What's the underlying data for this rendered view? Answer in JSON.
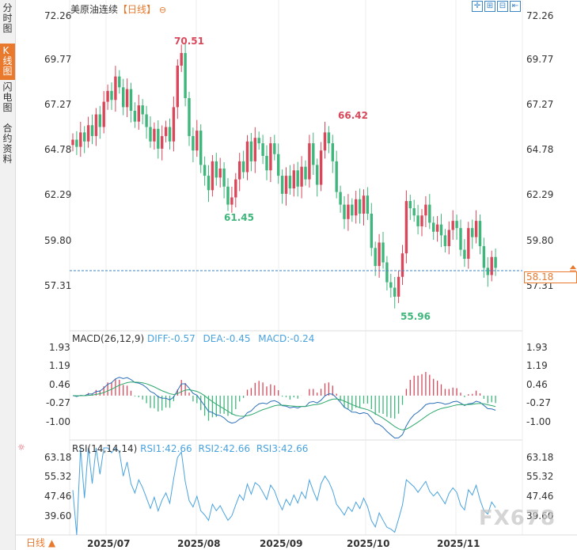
{
  "sidebar": {
    "tabs": [
      {
        "id": "fenshi",
        "label": "分时图"
      },
      {
        "id": "kline",
        "label": "K线图"
      },
      {
        "id": "flash",
        "label": "闪电图"
      },
      {
        "id": "contract",
        "label": "合约资料"
      }
    ],
    "bottom_button": "日线 ▲"
  },
  "header": {
    "symbol": "美原油连续",
    "period": "【日线】",
    "toggle_icon": "⊖",
    "tools": [
      "zoom-fit-icon",
      "zoom-in-icon",
      "zoom-out-icon",
      "back-icon"
    ]
  },
  "price_axis": {
    "ticks": [
      "72.26",
      "69.77",
      "67.27",
      "64.78",
      "62.29",
      "59.80",
      "57.31"
    ]
  },
  "current_price": "58.18",
  "annotations": {
    "high1": "70.51",
    "high2": "66.42",
    "low1": "61.45",
    "low2": "55.96"
  },
  "macd": {
    "label": "MACD(26,12,9)",
    "diff": "DIFF:-0.57",
    "dea": "DEA:-0.45",
    "macd": "MACD:-0.24",
    "ticks": [
      "1.93",
      "1.19",
      "0.46",
      "-0.27",
      "-1.00"
    ]
  },
  "rsi": {
    "label": "RSI(14,14,14)",
    "rsi1": "RSI1:42.66",
    "rsi2": "RSI2:42.66",
    "rsi3": "RSI3:42.66",
    "ticks": [
      "63.18",
      "55.32",
      "47.46",
      "39.60"
    ]
  },
  "x_axis": {
    "labels": [
      "2025/07",
      "2025/08",
      "2025/09",
      "2025/10",
      "2025/11"
    ]
  },
  "watermark": "FX678",
  "colors": {
    "up": "#d8485a",
    "down": "#3fb67b",
    "accent": "#e8792d",
    "blue": "#4aa3df",
    "diff": "#2a6fb8",
    "dea": "#2ea86d"
  },
  "chart_data": {
    "type": "candlestick",
    "title": "美原油连续 日线",
    "ylim": [
      55.5,
      72.5
    ],
    "closes": [
      65.4,
      65.0,
      65.8,
      65.3,
      66.2,
      65.6,
      66.8,
      66.1,
      67.5,
      68.1,
      67.6,
      68.9,
      68.3,
      67.2,
      68.2,
      67.0,
      66.4,
      67.3,
      66.8,
      66.1,
      65.3,
      66.0,
      64.9,
      65.6,
      66.1,
      65.3,
      67.2,
      69.5,
      70.2,
      67.7,
      65.6,
      64.8,
      65.9,
      64.0,
      63.4,
      62.6,
      64.2,
      63.3,
      63.8,
      62.8,
      61.8,
      62.2,
      63.2,
      64.2,
      63.6,
      65.3,
      64.2,
      65.5,
      65.2,
      64.5,
      63.7,
      65.2,
      64.6,
      63.4,
      62.4,
      63.4,
      62.7,
      63.7,
      62.8,
      63.9,
      63.2,
      65.2,
      64.0,
      62.9,
      64.8,
      65.8,
      65.2,
      64.2,
      62.5,
      61.8,
      61.0,
      61.8,
      61.2,
      62.1,
      61.3,
      62.3,
      61.3,
      59.4,
      58.4,
      59.7,
      58.6,
      57.5,
      57.2,
      56.7,
      57.8,
      59.1,
      62.0,
      61.6,
      61.2,
      60.6,
      61.2,
      61.8,
      60.8,
      60.3,
      60.7,
      60.1,
      59.5,
      60.4,
      60.9,
      60.5,
      59.3,
      58.8,
      60.5,
      60.0,
      60.9,
      59.5,
      58.3,
      57.9,
      58.9,
      58.3
    ]
  }
}
